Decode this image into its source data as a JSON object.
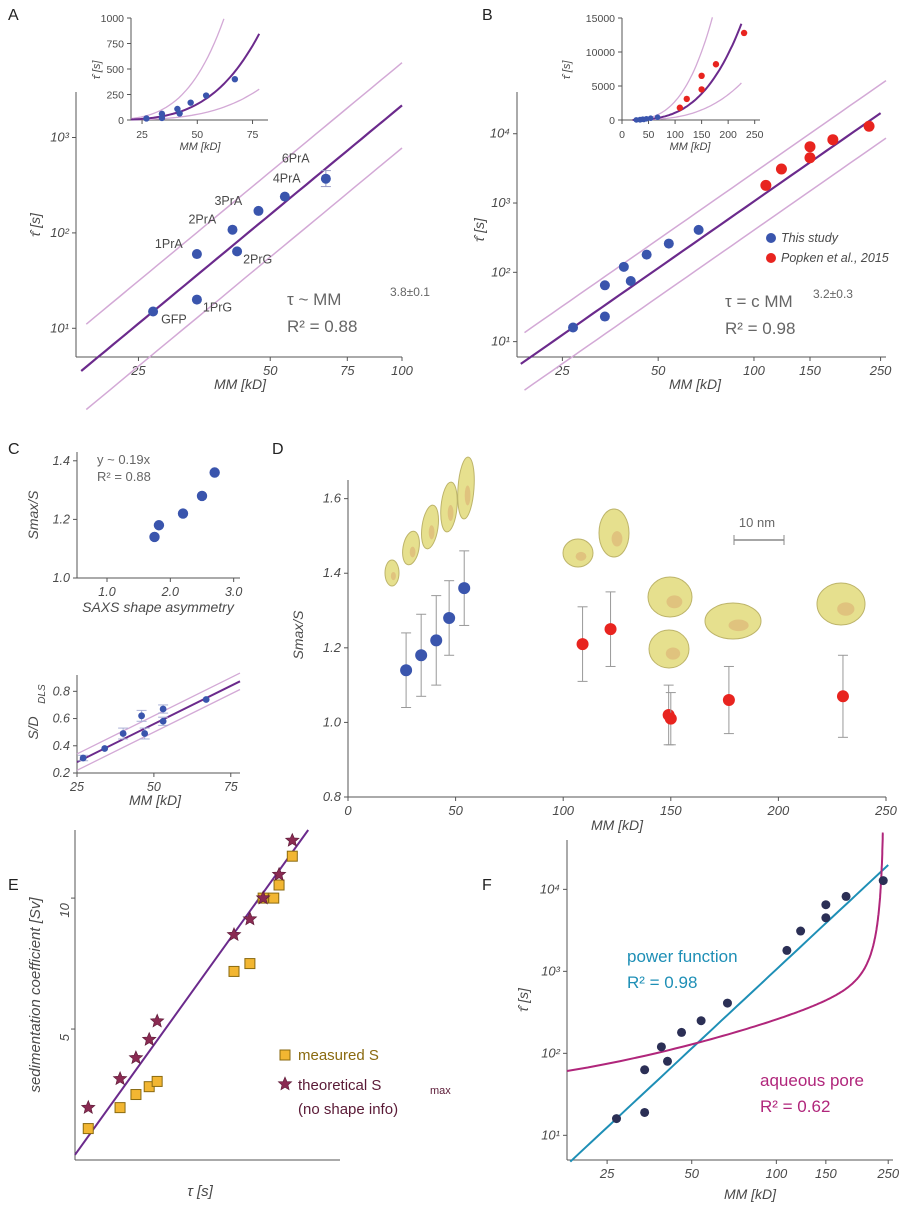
{
  "colors": {
    "fit_line": "#6b2a8c",
    "band_line": "#d3a9d6",
    "this_study": "#3a55ad",
    "popken": "#e8241f",
    "measured_s_fill": "#f2b632",
    "measured_s_stroke": "#8a6a10",
    "theoretical_fill": "#8a2a52",
    "power_line": "#1e8fb6",
    "pore_line": "#b0267b",
    "dark_points": "#2b2f55",
    "axis": "#555555",
    "structure_fill": "#e6e08e"
  },
  "icons": {
    "structures": "protein-structure-render"
  },
  "chart_data": [
    {
      "panel": "A",
      "type": "scatter",
      "x_scale": "log",
      "y_scale": "log",
      "xlabel": "MM [kD]",
      "ylabel": "τ̂ [s]",
      "x_ticks": [
        25,
        50,
        75,
        100
      ],
      "xlim": [
        18,
        100
      ],
      "y_ticks": [
        {
          "v": 10,
          "label": "10¹"
        },
        {
          "v": 100,
          "label": "10²"
        },
        {
          "v": 1000,
          "label": "10³"
        }
      ],
      "ylim": [
        5,
        3000
      ],
      "series": [
        {
          "points": [
            {
              "x": 27,
              "y": 15,
              "label": "GFP"
            },
            {
              "x": 34,
              "y": 20,
              "label": "1PrG"
            },
            {
              "x": 34,
              "y": 60,
              "label": "1PrA"
            },
            {
              "x": 41,
              "y": 108,
              "label": "2PrA"
            },
            {
              "x": 42,
              "y": 64,
              "label": "2PrG"
            },
            {
              "x": 47,
              "y": 170,
              "label": "3PrA"
            },
            {
              "x": 54,
              "y": 240,
              "label": "4PrA"
            },
            {
              "x": 67,
              "y": 370,
              "label": "6PrA",
              "err": 80
            }
          ]
        }
      ],
      "fit": {
        "exponent": 3.8,
        "anchor_x": 27,
        "anchor_y": 15,
        "band_factor": 2.8
      },
      "annotation_lines": [
        "τ ~ MM",
        "3.8±0.1",
        "R² = 0.88"
      ],
      "inset": {
        "x_scale": "linear",
        "y_scale": "linear",
        "xlabel": "MM [kD]",
        "ylabel": "τ̂ [s]",
        "x_ticks": [
          25,
          50,
          75
        ],
        "xlim": [
          20,
          82
        ],
        "y_ticks": [
          0,
          250,
          500,
          750,
          1000
        ],
        "ylim": [
          0,
          1000
        ],
        "points": [
          [
            27,
            15
          ],
          [
            34,
            20
          ],
          [
            34,
            60
          ],
          [
            41,
            108
          ],
          [
            42,
            64
          ],
          [
            47,
            170
          ],
          [
            54,
            240
          ],
          [
            67,
            400
          ]
        ],
        "curve_max_x": 78
      }
    },
    {
      "panel": "B",
      "type": "scatter",
      "x_scale": "log",
      "y_scale": "log",
      "xlabel": "MM [kD]",
      "ylabel": "τ̂ [s]",
      "x_ticks": [
        25,
        50,
        100,
        150,
        250
      ],
      "xlim": [
        18,
        260
      ],
      "y_ticks": [
        {
          "v": 10,
          "label": "10¹"
        },
        {
          "v": 100,
          "label": "10²"
        },
        {
          "v": 1000,
          "label": "10³"
        },
        {
          "v": 10000,
          "label": "10⁴"
        }
      ],
      "ylim": [
        6,
        40000
      ],
      "legend_position": "right",
      "series": [
        {
          "name": "This study",
          "points": [
            [
              27,
              16
            ],
            [
              34,
              23
            ],
            [
              34,
              65
            ],
            [
              39,
              120
            ],
            [
              41,
              75
            ],
            [
              46,
              180
            ],
            [
              54,
              260
            ],
            [
              67,
              410
            ]
          ]
        },
        {
          "name": "Popken et al., 2015",
          "points": [
            [
              109,
              1800
            ],
            [
              122,
              3100
            ],
            [
              150,
              6500
            ],
            [
              150,
              4500
            ],
            [
              177,
              8200
            ],
            [
              230,
              12800
            ]
          ]
        }
      ],
      "fit": {
        "exponent": 3.2,
        "anchor_x": 27,
        "anchor_y": 16,
        "band_factor": 2.6
      },
      "annotation_lines": [
        "τ = c MM",
        "3.2±0.3",
        "R² = 0.98"
      ],
      "inset": {
        "x_scale": "linear",
        "y_scale": "linear",
        "xlabel": "MM [kD]",
        "ylabel": "τ̂ [s]",
        "x_ticks": [
          0,
          50,
          100,
          150,
          200,
          250
        ],
        "xlim": [
          0,
          260
        ],
        "y_ticks": [
          0,
          5000,
          10000,
          15000
        ],
        "ylim": [
          0,
          15000
        ],
        "blue_points": [
          [
            27,
            16
          ],
          [
            34,
            23
          ],
          [
            34,
            65
          ],
          [
            39,
            120
          ],
          [
            41,
            75
          ],
          [
            46,
            180
          ],
          [
            54,
            260
          ],
          [
            67,
            410
          ]
        ],
        "red_points": [
          [
            109,
            1800
          ],
          [
            122,
            3100
          ],
          [
            150,
            6500
          ],
          [
            150,
            4500
          ],
          [
            177,
            8200
          ],
          [
            230,
            12800
          ]
        ],
        "curve_max_x": 225
      }
    },
    {
      "panel": "C",
      "type": "scatter",
      "xlabel": "SAXS shape asymmetry",
      "ylabel": "Smax/S",
      "x_ticks": [
        {
          "v": 1.0,
          "label": "1.0"
        },
        {
          "v": 2.0,
          "label": "2.0"
        },
        {
          "v": 3.0,
          "label": "3.0"
        }
      ],
      "xlim": [
        1.0,
        3.1
      ],
      "y_ticks": [
        {
          "v": 1.0,
          "label": "1.0"
        },
        {
          "v": 1.2,
          "label": "1.2"
        },
        {
          "v": 1.4,
          "label": "1.4"
        }
      ],
      "ylim": [
        1.0,
        1.43
      ],
      "points": [
        [
          1.75,
          1.14
        ],
        [
          1.82,
          1.18
        ],
        [
          2.2,
          1.22
        ],
        [
          2.5,
          1.28
        ],
        [
          2.7,
          1.36
        ]
      ],
      "annotation_lines": [
        "y ~ 0.19x",
        "R² = 0.88"
      ]
    },
    {
      "panel": "C-lower",
      "type": "scatter",
      "xlabel": "MM [kD]",
      "ylabel": "S/D",
      "ylabel_sub": "DLS",
      "x_ticks": [
        25,
        50,
        75
      ],
      "xlim": [
        25,
        78
      ],
      "y_ticks": [
        {
          "v": 0.2,
          "label": "0.2"
        },
        {
          "v": 0.4,
          "label": "0.4"
        },
        {
          "v": 0.6,
          "label": "0.6"
        },
        {
          "v": 0.8,
          "label": "0.8"
        }
      ],
      "ylim": [
        0.2,
        0.92
      ],
      "points": [
        [
          27,
          0.31,
          0.02
        ],
        [
          34,
          0.38,
          0
        ],
        [
          40,
          0.49,
          0.04
        ],
        [
          46,
          0.62,
          0.04
        ],
        [
          47,
          0.49,
          0.04
        ],
        [
          53,
          0.67,
          0.03
        ],
        [
          53,
          0.58,
          0.03
        ],
        [
          67,
          0.74,
          0
        ]
      ],
      "fit": {
        "slope": 0.0112,
        "intercept": 0.0,
        "band": 0.06
      }
    },
    {
      "panel": "D",
      "type": "scatter",
      "xlabel": "MM [kD]",
      "ylabel": "Smax/S",
      "x_ticks": [
        0,
        50,
        100,
        150,
        200,
        250
      ],
      "xlim": [
        0,
        250
      ],
      "y_ticks": [
        {
          "v": 0.8,
          "label": "0.8"
        },
        {
          "v": 1.0,
          "label": "1.0"
        },
        {
          "v": 1.2,
          "label": "1.2"
        },
        {
          "v": 1.4,
          "label": "1.4"
        },
        {
          "v": 1.6,
          "label": "1.6"
        }
      ],
      "ylim": [
        0.8,
        1.65
      ],
      "series": [
        {
          "color": "blue",
          "points": [
            [
              27,
              1.14,
              0.1
            ],
            [
              34,
              1.18,
              0.11
            ],
            [
              41,
              1.22,
              0.12
            ],
            [
              47,
              1.28,
              0.1
            ],
            [
              54,
              1.36,
              0.1
            ]
          ]
        },
        {
          "color": "red",
          "points": [
            [
              109,
              1.21,
              0.1
            ],
            [
              122,
              1.25,
              0.1
            ],
            [
              149,
              1.02,
              0.08
            ],
            [
              150,
              1.01,
              0.07
            ],
            [
              177,
              1.06,
              0.09
            ],
            [
              230,
              1.07,
              0.11
            ]
          ]
        }
      ],
      "scale_bar": "10 nm"
    },
    {
      "panel": "E",
      "type": "scatter",
      "xlabel": "τ [s]",
      "ylabel": "sedimentation coefficient [Sv]",
      "y_ticks": [
        5,
        10
      ],
      "ylim": [
        0,
        12.6
      ],
      "xlim": [
        0,
        1
      ],
      "legend_position": "right",
      "legend": [
        "measured S",
        "theoretical S",
        "max",
        "(no shape info)"
      ],
      "series": [
        {
          "name": "measured S",
          "points": [
            [
              0.05,
              1.2
            ],
            [
              0.17,
              2.0
            ],
            [
              0.23,
              2.5
            ],
            [
              0.28,
              2.8
            ],
            [
              0.31,
              3.0
            ],
            [
              0.6,
              7.2
            ],
            [
              0.66,
              7.5
            ],
            [
              0.71,
              10.0
            ],
            [
              0.75,
              10.0
            ],
            [
              0.77,
              10.5
            ],
            [
              0.82,
              11.6
            ]
          ]
        },
        {
          "name": "theoretical",
          "points": [
            [
              0.05,
              2.0
            ],
            [
              0.17,
              3.1
            ],
            [
              0.23,
              3.9
            ],
            [
              0.28,
              4.6
            ],
            [
              0.31,
              5.3
            ],
            [
              0.6,
              8.6
            ],
            [
              0.66,
              9.2
            ],
            [
              0.71,
              10.0
            ],
            [
              0.77,
              10.9
            ],
            [
              0.82,
              12.2
            ]
          ]
        }
      ],
      "fit": {
        "x0": 0.0,
        "y0": 0.2,
        "x1": 0.88,
        "y1": 12.6
      }
    },
    {
      "panel": "F",
      "type": "scatter",
      "x_scale": "log",
      "y_scale": "log",
      "xlabel": "MM [kD]",
      "ylabel": "τ̂ [s]",
      "x_ticks": [
        25,
        50,
        100,
        150,
        250
      ],
      "xlim": [
        18,
        260
      ],
      "y_ticks": [
        {
          "v": 10,
          "label": "10¹"
        },
        {
          "v": 100,
          "label": "10²"
        },
        {
          "v": 1000,
          "label": "10³"
        },
        {
          "v": 10000,
          "label": "10⁴"
        }
      ],
      "ylim": [
        5,
        40000
      ],
      "points": [
        [
          27,
          16
        ],
        [
          34,
          19
        ],
        [
          34,
          63
        ],
        [
          39,
          120
        ],
        [
          41,
          80
        ],
        [
          46,
          180
        ],
        [
          54,
          250
        ],
        [
          67,
          410
        ],
        [
          109,
          1800
        ],
        [
          122,
          3100
        ],
        [
          150,
          6500
        ],
        [
          150,
          4500
        ],
        [
          177,
          8200
        ],
        [
          240,
          12800
        ]
      ],
      "power_fit": {
        "exponent": 3.2,
        "anchor_x": 27,
        "anchor_y": 16
      },
      "pore_fit": {
        "a": 48,
        "b": 3.2,
        "xmax": 241,
        "x0": 18,
        "y0": 26
      },
      "annotations": [
        "power function",
        "R² = 0.98",
        "aqueous pore",
        "R² = 0.62"
      ]
    }
  ],
  "panel_labels": [
    "A",
    "B",
    "C",
    "D",
    "E",
    "F"
  ]
}
